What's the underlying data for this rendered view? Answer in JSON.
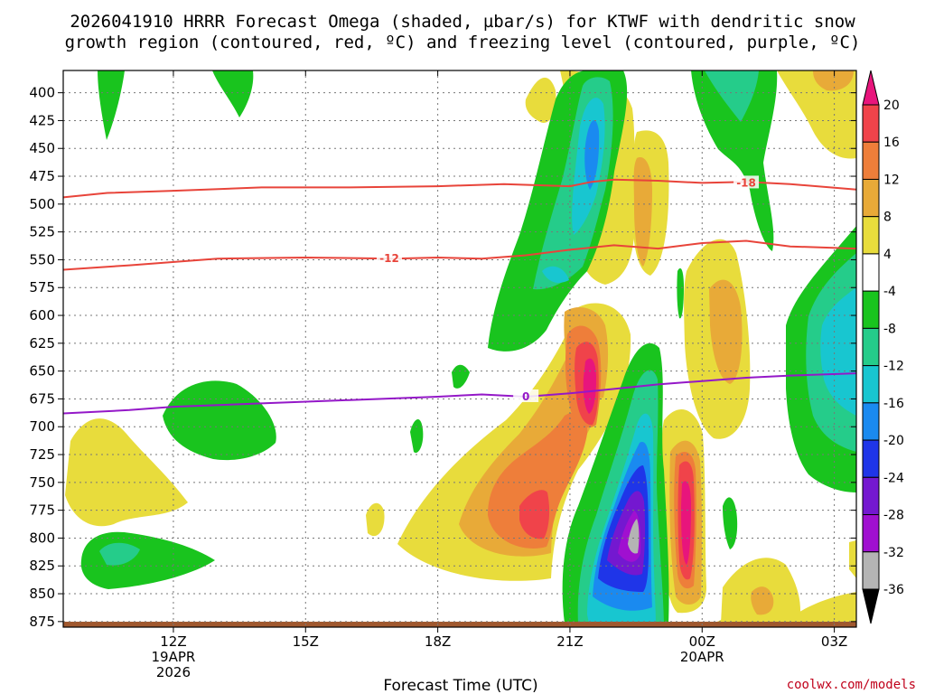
{
  "chart_data": {
    "type": "heatmap",
    "title_line1": "2026041910 HRRR Forecast Omega (shaded, µbar/s) for KTWF with dendritic snow",
    "title_line2": "growth region (contoured, red, ºC) and freezing level (contoured, purple, ºC)",
    "xlabel": "Forecast Time (UTC)",
    "credit": "coolwx.com/models",
    "x_range_hours": [
      9.5,
      27.5
    ],
    "y_range_hpa": [
      380,
      880
    ],
    "y_ticks": [
      {
        "value": 400,
        "label": "400"
      },
      {
        "value": 425,
        "label": "425"
      },
      {
        "value": 450,
        "label": "450"
      },
      {
        "value": 475,
        "label": "475"
      },
      {
        "value": 500,
        "label": "500"
      },
      {
        "value": 525,
        "label": "525"
      },
      {
        "value": 550,
        "label": "550"
      },
      {
        "value": 575,
        "label": "575"
      },
      {
        "value": 600,
        "label": "600"
      },
      {
        "value": 625,
        "label": "625"
      },
      {
        "value": 650,
        "label": "650"
      },
      {
        "value": 675,
        "label": "675"
      },
      {
        "value": 700,
        "label": "700"
      },
      {
        "value": 725,
        "label": "725"
      },
      {
        "value": 750,
        "label": "750"
      },
      {
        "value": 775,
        "label": "775"
      },
      {
        "value": 800,
        "label": "800"
      },
      {
        "value": 825,
        "label": "825"
      },
      {
        "value": 850,
        "label": "850"
      },
      {
        "value": 875,
        "label": "875"
      }
    ],
    "x_ticks": [
      {
        "hour": 12,
        "label": "12Z",
        "sub1": "19APR",
        "sub2": "2026"
      },
      {
        "hour": 15,
        "label": "15Z",
        "sub1": "",
        "sub2": ""
      },
      {
        "hour": 18,
        "label": "18Z",
        "sub1": "",
        "sub2": ""
      },
      {
        "hour": 21,
        "label": "21Z",
        "sub1": "",
        "sub2": ""
      },
      {
        "hour": 24,
        "label": "00Z",
        "sub1": "20APR",
        "sub2": ""
      },
      {
        "hour": 27,
        "label": "03Z",
        "sub1": "",
        "sub2": ""
      }
    ],
    "colorbar": {
      "labels": [
        "20",
        "16",
        "12",
        "8",
        "4",
        "-4",
        "-8",
        "-12",
        "-16",
        "-20",
        "-24",
        "-28",
        "-32",
        "-36"
      ],
      "bins": [
        {
          "color": "#e8157c"
        },
        {
          "color": "#f0434a"
        },
        {
          "color": "#ee7e3a"
        },
        {
          "color": "#e8aa38"
        },
        {
          "color": "#e8dc3c"
        },
        {
          "color": "#ffffff"
        },
        {
          "color": "#19c41e"
        },
        {
          "color": "#25cc8a"
        },
        {
          "color": "#18c6d0"
        },
        {
          "color": "#1a8af0"
        },
        {
          "color": "#1f35e8"
        },
        {
          "color": "#7418d0"
        },
        {
          "color": "#a010d0"
        },
        {
          "color": "#b4b4b4"
        },
        {
          "color": "#000000"
        }
      ]
    },
    "contours": [
      {
        "name": "-18C",
        "value": -18,
        "label": "-18",
        "color": "#e8443a",
        "points": [
          [
            9.5,
            494
          ],
          [
            10.5,
            490
          ],
          [
            12,
            488
          ],
          [
            14,
            485
          ],
          [
            16,
            485
          ],
          [
            18,
            484
          ],
          [
            19.5,
            482
          ],
          [
            21,
            484
          ],
          [
            21.5,
            480
          ],
          [
            22,
            478
          ],
          [
            23,
            479
          ],
          [
            24,
            481
          ],
          [
            25,
            480
          ],
          [
            26,
            482
          ],
          [
            27.5,
            487
          ]
        ],
        "label_at": [
          25,
          481
        ]
      },
      {
        "name": "-12C",
        "value": -12,
        "label": "-12",
        "color": "#e8443a",
        "points": [
          [
            9.5,
            559
          ],
          [
            11,
            555
          ],
          [
            13,
            549
          ],
          [
            15,
            548
          ],
          [
            17,
            549
          ],
          [
            18,
            548
          ],
          [
            19,
            549
          ],
          [
            20,
            546
          ],
          [
            21,
            541
          ],
          [
            22,
            537
          ],
          [
            23,
            540
          ],
          [
            24,
            535
          ],
          [
            25,
            533
          ],
          [
            26,
            538
          ],
          [
            27.5,
            540
          ]
        ],
        "label_at": [
          16.9,
          549
        ]
      },
      {
        "name": "0C",
        "value": 0,
        "label": "0",
        "color": "#9418c8",
        "points": [
          [
            9.5,
            688
          ],
          [
            11,
            685
          ],
          [
            12,
            682
          ],
          [
            14,
            679
          ],
          [
            16,
            676
          ],
          [
            18,
            673
          ],
          [
            19,
            671
          ],
          [
            20,
            673
          ],
          [
            21,
            670
          ],
          [
            22,
            666
          ],
          [
            23,
            662
          ],
          [
            24,
            659
          ],
          [
            25,
            656
          ],
          [
            26,
            654
          ],
          [
            27.5,
            652
          ]
        ],
        "label_at": [
          20,
          673
        ]
      }
    ]
  }
}
